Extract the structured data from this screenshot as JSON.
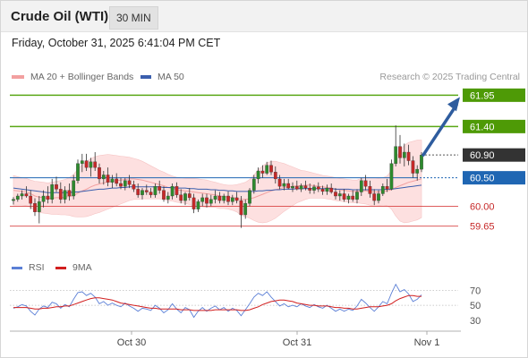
{
  "header": {
    "title": "Crude Oil (WTI)",
    "interval": "30 MIN"
  },
  "timestamp": "Friday, October 31, 2025 6:41:04 PM CET",
  "legend": {
    "ma20_label": "MA 20 + Bollinger Bands",
    "ma50_label": "MA 50",
    "credit": "Research © 2025 Trading Central"
  },
  "rsi_legend": {
    "rsi_label": "RSI",
    "ma_label": "9MA"
  },
  "colors": {
    "candle_up": "#2d8a2d",
    "candle_down": "#c62828",
    "bollinger_fill": "#fde0e0",
    "ma20": "#f2a0a0",
    "ma50": "#3b5fae",
    "resistance": "#5aa816",
    "support": "#d94545",
    "pivot": "#1f66b3",
    "arrow": "#2e5c9e",
    "rsi": "#5b7fd6",
    "rsi_ma": "#d21f1f"
  },
  "chart_data": [
    {
      "type": "candlestick",
      "title": "Crude Oil (WTI)",
      "ylim": [
        59.3,
        62.05
      ],
      "x_ticks": [
        "Oct 30",
        "Oct 31",
        "Nov 1"
      ],
      "levels": [
        {
          "label": "61.95",
          "value": 61.95,
          "kind": "resistance"
        },
        {
          "label": "61.40",
          "value": 61.4,
          "kind": "resistance"
        },
        {
          "label": "60.90",
          "value": 60.9,
          "kind": "current"
        },
        {
          "label": "60.50",
          "value": 60.5,
          "kind": "pivot"
        },
        {
          "label": "60.00",
          "value": 60.0,
          "kind": "support"
        },
        {
          "label": "59.65",
          "value": 59.65,
          "kind": "support"
        }
      ],
      "candles": [
        [
          60.1,
          60.16,
          60.03,
          60.12
        ],
        [
          60.12,
          60.22,
          60.08,
          60.18
        ],
        [
          60.18,
          60.28,
          60.12,
          60.22
        ],
        [
          60.22,
          60.35,
          60.15,
          60.18
        ],
        [
          60.18,
          60.28,
          59.95,
          60.05
        ],
        [
          60.05,
          60.14,
          59.83,
          59.9
        ],
        [
          59.9,
          60.18,
          59.7,
          60.08
        ],
        [
          60.08,
          60.28,
          59.98,
          60.18
        ],
        [
          60.18,
          60.35,
          60.05,
          60.12
        ],
        [
          60.12,
          60.48,
          60.05,
          60.38
        ],
        [
          60.38,
          60.52,
          60.25,
          60.3
        ],
        [
          60.3,
          60.42,
          60.05,
          60.12
        ],
        [
          60.12,
          60.35,
          60.05,
          60.28
        ],
        [
          60.28,
          60.4,
          60.1,
          60.18
        ],
        [
          60.18,
          60.55,
          60.12,
          60.45
        ],
        [
          60.45,
          60.82,
          60.4,
          60.75
        ],
        [
          60.75,
          60.92,
          60.6,
          60.8
        ],
        [
          60.8,
          60.92,
          60.62,
          60.68
        ],
        [
          60.68,
          60.85,
          60.52,
          60.78
        ],
        [
          60.78,
          60.95,
          60.62,
          60.68
        ],
        [
          60.68,
          60.75,
          60.4,
          60.48
        ],
        [
          60.48,
          60.62,
          60.38,
          60.55
        ],
        [
          60.55,
          60.68,
          60.35,
          60.42
        ],
        [
          60.42,
          60.55,
          60.32,
          60.48
        ],
        [
          60.48,
          60.58,
          60.35,
          60.4
        ],
        [
          60.4,
          60.5,
          60.3,
          60.35
        ],
        [
          60.35,
          60.5,
          60.28,
          60.45
        ],
        [
          60.45,
          60.55,
          60.32,
          60.38
        ],
        [
          60.38,
          60.45,
          60.25,
          60.3
        ],
        [
          60.3,
          60.4,
          60.15,
          60.2
        ],
        [
          60.2,
          60.32,
          60.12,
          60.28
        ],
        [
          60.28,
          60.38,
          60.2,
          60.25
        ],
        [
          60.25,
          60.32,
          60.15,
          60.2
        ],
        [
          60.2,
          60.4,
          60.15,
          60.35
        ],
        [
          60.35,
          60.45,
          60.22,
          60.28
        ],
        [
          60.28,
          60.35,
          60.08,
          60.12
        ],
        [
          60.12,
          60.25,
          60.05,
          60.18
        ],
        [
          60.18,
          60.4,
          60.12,
          60.35
        ],
        [
          60.35,
          60.42,
          60.15,
          60.2
        ],
        [
          60.2,
          60.3,
          60.05,
          60.1
        ],
        [
          60.1,
          60.25,
          60.02,
          60.22
        ],
        [
          60.22,
          60.32,
          60.1,
          60.15
        ],
        [
          60.15,
          60.22,
          59.88,
          59.95
        ],
        [
          59.95,
          60.12,
          59.9,
          60.08
        ],
        [
          60.08,
          60.22,
          60.0,
          60.15
        ],
        [
          60.15,
          60.22,
          59.98,
          60.05
        ],
        [
          60.05,
          60.2,
          60.0,
          60.12
        ],
        [
          60.12,
          60.28,
          60.05,
          60.18
        ],
        [
          60.18,
          60.25,
          60.05,
          60.1
        ],
        [
          60.1,
          60.22,
          60.05,
          60.18
        ],
        [
          60.18,
          60.26,
          60.02,
          60.08
        ],
        [
          60.08,
          60.2,
          60.02,
          60.15
        ],
        [
          60.15,
          60.25,
          60.05,
          60.1
        ],
        [
          60.1,
          60.18,
          59.62,
          59.85
        ],
        [
          59.85,
          60.12,
          59.78,
          60.05
        ],
        [
          60.05,
          60.32,
          60.0,
          60.28
        ],
        [
          60.28,
          60.55,
          60.22,
          60.48
        ],
        [
          60.48,
          60.68,
          60.4,
          60.62
        ],
        [
          60.62,
          60.72,
          60.5,
          60.58
        ],
        [
          60.58,
          60.78,
          60.55,
          60.72
        ],
        [
          60.72,
          60.8,
          60.55,
          60.6
        ],
        [
          60.6,
          60.7,
          60.4,
          60.48
        ],
        [
          60.48,
          60.55,
          60.3,
          60.35
        ],
        [
          60.35,
          60.48,
          60.28,
          60.4
        ],
        [
          60.4,
          60.48,
          60.3,
          60.32
        ],
        [
          60.32,
          60.42,
          60.25,
          60.35
        ],
        [
          60.35,
          60.45,
          60.28,
          60.3
        ],
        [
          60.3,
          60.4,
          60.25,
          60.36
        ],
        [
          60.36,
          60.45,
          60.28,
          60.32
        ],
        [
          60.32,
          60.4,
          60.22,
          60.28
        ],
        [
          60.28,
          60.38,
          60.22,
          60.34
        ],
        [
          60.34,
          60.42,
          60.25,
          60.3
        ],
        [
          60.3,
          60.36,
          60.2,
          60.26
        ],
        [
          60.26,
          60.38,
          60.2,
          60.32
        ],
        [
          60.32,
          60.4,
          60.22,
          60.25
        ],
        [
          60.25,
          60.32,
          60.12,
          60.18
        ],
        [
          60.18,
          60.28,
          60.1,
          60.22
        ],
        [
          60.22,
          60.3,
          60.08,
          60.12
        ],
        [
          60.12,
          60.22,
          60.05,
          60.18
        ],
        [
          60.18,
          60.28,
          60.08,
          60.12
        ],
        [
          60.12,
          60.3,
          60.05,
          60.25
        ],
        [
          60.25,
          60.5,
          60.18,
          60.45
        ],
        [
          60.45,
          60.55,
          60.28,
          60.35
        ],
        [
          60.35,
          60.45,
          60.15,
          60.22
        ],
        [
          60.22,
          60.3,
          60.02,
          60.1
        ],
        [
          60.1,
          60.28,
          60.05,
          60.22
        ],
        [
          60.22,
          60.4,
          60.18,
          60.35
        ],
        [
          60.35,
          60.48,
          60.25,
          60.3
        ],
        [
          60.3,
          60.82,
          60.28,
          60.75
        ],
        [
          60.75,
          61.42,
          60.7,
          61.05
        ],
        [
          61.05,
          61.25,
          60.75,
          60.85
        ],
        [
          60.85,
          61.1,
          60.7,
          60.95
        ],
        [
          60.95,
          61.08,
          60.72,
          60.8
        ],
        [
          60.8,
          60.88,
          60.5,
          60.58
        ],
        [
          60.58,
          60.72,
          60.45,
          60.65
        ],
        [
          60.65,
          60.95,
          60.6,
          60.9
        ]
      ],
      "ma20": [
        60.28,
        60.27,
        60.26,
        60.25,
        60.22,
        60.18,
        60.16,
        60.15,
        60.14,
        60.14,
        60.15,
        60.15,
        60.16,
        60.17,
        60.19,
        60.23,
        60.27,
        60.3,
        60.34,
        60.37,
        60.39,
        60.41,
        60.43,
        60.44,
        60.45,
        60.46,
        60.47,
        60.48,
        60.48,
        60.47,
        60.46,
        60.44,
        60.42,
        60.4,
        60.38,
        60.36,
        60.33,
        60.31,
        60.29,
        60.28,
        60.27,
        60.26,
        60.25,
        60.24,
        60.23,
        60.22,
        60.21,
        60.2,
        60.18,
        60.17,
        60.16,
        60.15,
        60.14,
        60.12,
        60.12,
        60.13,
        60.15,
        60.18,
        60.21,
        60.24,
        60.27,
        60.29,
        60.31,
        60.33,
        60.34,
        60.35,
        60.36,
        60.36,
        60.37,
        60.37,
        60.36,
        60.35,
        60.34,
        60.33,
        60.32,
        60.3,
        60.29,
        60.28,
        60.27,
        60.26,
        60.26,
        60.27,
        60.27,
        60.26,
        60.25,
        60.25,
        60.26,
        60.27,
        60.29,
        60.33,
        60.36,
        60.39,
        60.42,
        60.44,
        60.46,
        60.48
      ],
      "ma50": [
        60.32,
        60.31,
        60.3,
        60.29,
        60.28,
        60.27,
        60.26,
        60.25,
        60.24,
        60.24,
        60.24,
        60.24,
        60.24,
        60.24,
        60.25,
        60.25,
        60.26,
        60.27,
        60.28,
        60.29,
        60.3,
        60.3,
        60.31,
        60.32,
        60.32,
        60.33,
        60.33,
        60.34,
        60.34,
        60.34,
        60.34,
        60.34,
        60.34,
        60.34,
        60.34,
        60.33,
        60.33,
        60.33,
        60.32,
        60.32,
        60.32,
        60.31,
        60.31,
        60.3,
        60.3,
        60.3,
        60.29,
        60.29,
        60.28,
        60.28,
        60.27,
        60.27,
        60.26,
        60.26,
        60.26,
        60.26,
        60.26,
        60.27,
        60.27,
        60.28,
        60.28,
        60.29,
        60.29,
        60.3,
        60.3,
        60.3,
        60.31,
        60.31,
        60.31,
        60.31,
        60.31,
        60.31,
        60.31,
        60.31,
        60.31,
        60.3,
        60.3,
        60.3,
        60.3,
        60.29,
        60.29,
        60.29,
        60.29,
        60.29,
        60.29,
        60.29,
        60.29,
        60.3,
        60.3,
        60.31,
        60.32,
        60.33,
        60.34,
        60.35,
        60.36,
        60.37
      ],
      "bollinger_width": [
        0.26,
        0.25,
        0.24,
        0.24,
        0.24,
        0.26,
        0.27,
        0.27,
        0.27,
        0.28,
        0.29,
        0.3,
        0.31,
        0.33,
        0.37,
        0.42,
        0.46,
        0.48,
        0.5,
        0.5,
        0.5,
        0.49,
        0.48,
        0.46,
        0.44,
        0.42,
        0.4,
        0.38,
        0.36,
        0.35,
        0.33,
        0.31,
        0.29,
        0.27,
        0.25,
        0.24,
        0.23,
        0.22,
        0.22,
        0.22,
        0.22,
        0.23,
        0.24,
        0.24,
        0.24,
        0.24,
        0.23,
        0.22,
        0.22,
        0.21,
        0.21,
        0.22,
        0.24,
        0.28,
        0.3,
        0.34,
        0.4,
        0.46,
        0.5,
        0.52,
        0.52,
        0.5,
        0.46,
        0.42,
        0.38,
        0.34,
        0.3,
        0.27,
        0.25,
        0.23,
        0.22,
        0.21,
        0.2,
        0.2,
        0.2,
        0.2,
        0.2,
        0.2,
        0.2,
        0.2,
        0.2,
        0.22,
        0.23,
        0.24,
        0.25,
        0.24,
        0.24,
        0.26,
        0.34,
        0.5,
        0.62,
        0.68,
        0.7,
        0.7,
        0.7,
        0.68
      ]
    },
    {
      "type": "line",
      "title": "RSI",
      "ylim": [
        25,
        80
      ],
      "y_ticks": [
        "70",
        "50",
        "30"
      ],
      "series": [
        {
          "name": "RSI",
          "values": [
            46,
            48,
            51,
            49,
            42,
            37,
            45,
            49,
            47,
            54,
            52,
            46,
            51,
            48,
            58,
            67,
            68,
            63,
            66,
            61,
            52,
            55,
            50,
            53,
            50,
            48,
            53,
            49,
            46,
            42,
            46,
            45,
            43,
            50,
            46,
            40,
            44,
            52,
            45,
            40,
            47,
            44,
            34,
            42,
            47,
            42,
            46,
            49,
            44,
            47,
            42,
            46,
            43,
            36,
            44,
            52,
            61,
            66,
            63,
            68,
            61,
            55,
            49,
            52,
            48,
            50,
            48,
            52,
            49,
            47,
            51,
            48,
            46,
            50,
            46,
            42,
            45,
            42,
            45,
            43,
            49,
            58,
            53,
            47,
            42,
            48,
            55,
            52,
            66,
            78,
            68,
            71,
            65,
            55,
            58,
            64
          ]
        },
        {
          "name": "9MA",
          "values": [
            47,
            47,
            47,
            47,
            46,
            45,
            45,
            46,
            46,
            47,
            48,
            48,
            49,
            49,
            51,
            53,
            55,
            57,
            59,
            60,
            60,
            59,
            58,
            57,
            55,
            53,
            52,
            51,
            50,
            49,
            48,
            47,
            46,
            46,
            45,
            45,
            45,
            45,
            45,
            44,
            44,
            44,
            43,
            43,
            43,
            43,
            43,
            44,
            44,
            44,
            44,
            44,
            44,
            43,
            43,
            44,
            46,
            48,
            51,
            53,
            55,
            56,
            57,
            57,
            56,
            55,
            53,
            52,
            51,
            50,
            50,
            49,
            49,
            49,
            48,
            47,
            47,
            46,
            46,
            45,
            45,
            46,
            47,
            48,
            48,
            48,
            49,
            50,
            52,
            56,
            59,
            61,
            63,
            63,
            62,
            62
          ]
        }
      ]
    }
  ]
}
